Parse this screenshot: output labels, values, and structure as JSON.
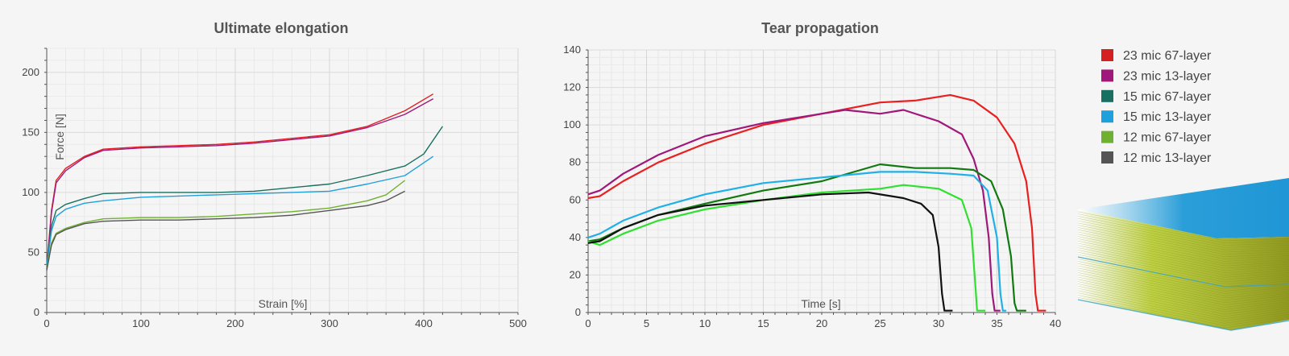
{
  "chart_data": [
    {
      "type": "line",
      "title": "Ultimate elongation",
      "xlabel": "Strain [%]",
      "ylabel": "Force [N]",
      "xlim": [
        0,
        500
      ],
      "ylim": [
        0,
        220
      ],
      "xticks": [
        0,
        100,
        200,
        300,
        400,
        500
      ],
      "yticks": [
        0,
        50,
        100,
        150,
        200
      ],
      "grid": true,
      "series": [
        {
          "name": "23 mic 67-layer",
          "color": "#e02020",
          "x": [
            0,
            5,
            10,
            20,
            40,
            60,
            100,
            140,
            180,
            220,
            260,
            300,
            340,
            380,
            410
          ],
          "y": [
            38,
            85,
            110,
            120,
            130,
            136,
            138,
            139,
            140,
            142,
            145,
            148,
            155,
            168,
            182
          ]
        },
        {
          "name": "23 mic 13-layer",
          "color": "#a0187a",
          "x": [
            0,
            5,
            10,
            20,
            40,
            60,
            100,
            140,
            180,
            220,
            260,
            300,
            340,
            380,
            410
          ],
          "y": [
            36,
            83,
            108,
            118,
            129,
            135,
            137,
            138,
            139,
            141,
            144,
            147,
            154,
            165,
            178
          ]
        },
        {
          "name": "15 mic 67-layer",
          "color": "#1a7060",
          "x": [
            0,
            5,
            10,
            20,
            40,
            60,
            100,
            140,
            180,
            220,
            260,
            300,
            340,
            380,
            400,
            420
          ],
          "y": [
            40,
            72,
            85,
            90,
            95,
            99,
            100,
            100,
            100,
            101,
            104,
            107,
            114,
            122,
            132,
            155
          ]
        },
        {
          "name": "15 mic 13-layer",
          "color": "#1ea0dc",
          "x": [
            0,
            5,
            10,
            20,
            40,
            60,
            100,
            140,
            180,
            220,
            260,
            300,
            340,
            380,
            410
          ],
          "y": [
            38,
            68,
            80,
            86,
            91,
            93,
            96,
            97,
            98,
            99,
            100,
            101,
            107,
            114,
            130
          ]
        },
        {
          "name": "12 mic 67-layer",
          "color": "#70b030",
          "x": [
            0,
            5,
            10,
            20,
            40,
            60,
            100,
            140,
            180,
            220,
            260,
            300,
            340,
            360,
            380
          ],
          "y": [
            36,
            58,
            66,
            70,
            75,
            78,
            79,
            79,
            80,
            82,
            84,
            87,
            93,
            98,
            110
          ]
        },
        {
          "name": "12 mic 13-layer",
          "color": "#555555",
          "x": [
            0,
            5,
            10,
            20,
            40,
            60,
            100,
            140,
            180,
            220,
            260,
            300,
            340,
            360,
            380
          ],
          "y": [
            35,
            56,
            65,
            69,
            74,
            76,
            77,
            77,
            78,
            79,
            81,
            85,
            89,
            93,
            101
          ]
        }
      ]
    },
    {
      "type": "line",
      "title": "Tear propagation",
      "xlabel": "Time [s]",
      "ylabel": "",
      "xlim": [
        0,
        40
      ],
      "ylim": [
        0,
        140
      ],
      "xticks": [
        0,
        5,
        10,
        15,
        20,
        25,
        30,
        35,
        40
      ],
      "yticks": [
        0,
        20,
        40,
        60,
        80,
        100,
        120,
        140
      ],
      "grid": true,
      "series": [
        {
          "name": "23 mic 67-layer",
          "color": "#e82020",
          "x": [
            0,
            1,
            3,
            6,
            10,
            15,
            20,
            25,
            28,
            31,
            33,
            35,
            36.5,
            37.5,
            38,
            38.3,
            38.5,
            39.2
          ],
          "y": [
            61,
            62,
            70,
            80,
            90,
            100,
            106,
            112,
            113,
            116,
            113,
            104,
            90,
            70,
            45,
            10,
            1,
            1
          ]
        },
        {
          "name": "23 mic 13-layer",
          "color": "#a0187a",
          "x": [
            0,
            1,
            3,
            6,
            10,
            15,
            20,
            22,
            25,
            27,
            30,
            32,
            33,
            33.8,
            34.3,
            34.6,
            34.8,
            35.3
          ],
          "y": [
            63,
            65,
            74,
            84,
            94,
            101,
            106,
            108,
            106,
            108,
            102,
            95,
            82,
            65,
            40,
            10,
            1,
            1
          ]
        },
        {
          "name": "15 mic 67-layer",
          "color": "#107a10",
          "x": [
            0,
            1,
            3,
            6,
            10,
            15,
            20,
            25,
            28,
            31,
            33,
            34.5,
            35.5,
            36.2,
            36.5,
            36.7,
            37.5
          ],
          "y": [
            38,
            39,
            45,
            52,
            58,
            65,
            70,
            79,
            77,
            77,
            76,
            70,
            55,
            30,
            5,
            1,
            1
          ]
        },
        {
          "name": "15 mic 13-layer",
          "color": "#20b0e8",
          "x": [
            0,
            1,
            3,
            6,
            10,
            15,
            20,
            25,
            28,
            31,
            33,
            34.2,
            35,
            35.3,
            35.5,
            35.8
          ],
          "y": [
            40,
            42,
            49,
            56,
            63,
            69,
            72,
            75,
            75,
            74,
            73,
            65,
            40,
            10,
            1,
            1
          ]
        },
        {
          "name": "12 mic 67-layer",
          "color": "#30e030",
          "x": [
            0,
            1,
            3,
            6,
            10,
            15,
            20,
            25,
            27,
            30,
            32,
            32.8,
            33.2,
            33.3,
            34
          ],
          "y": [
            38,
            36,
            42,
            49,
            55,
            60,
            64,
            66,
            68,
            66,
            60,
            45,
            10,
            1,
            1
          ]
        },
        {
          "name": "12 mic 13-layer",
          "color": "#111111",
          "x": [
            0,
            1,
            3,
            6,
            10,
            15,
            20,
            24,
            27,
            28.5,
            29.5,
            30,
            30.3,
            30.5,
            31.2
          ],
          "y": [
            37,
            38,
            45,
            52,
            57,
            60,
            63,
            64,
            61,
            58,
            52,
            35,
            10,
            1,
            1
          ]
        }
      ]
    }
  ],
  "legend": {
    "items": [
      {
        "label": "23 mic 67-layer",
        "color": "#d42020"
      },
      {
        "label": "23 mic 13-layer",
        "color": "#a0187a"
      },
      {
        "label": "15 mic 67-layer",
        "color": "#1a7060"
      },
      {
        "label": "15 mic 13-layer",
        "color": "#1ea0dc"
      },
      {
        "label": "12 mic 67-layer",
        "color": "#70b030"
      },
      {
        "label": "12 mic 13-layer",
        "color": "#555555"
      }
    ]
  },
  "illustration": {
    "icon": "layered-film-icon",
    "top_color": "#2a9ed8",
    "body_color": "#a8c020"
  }
}
